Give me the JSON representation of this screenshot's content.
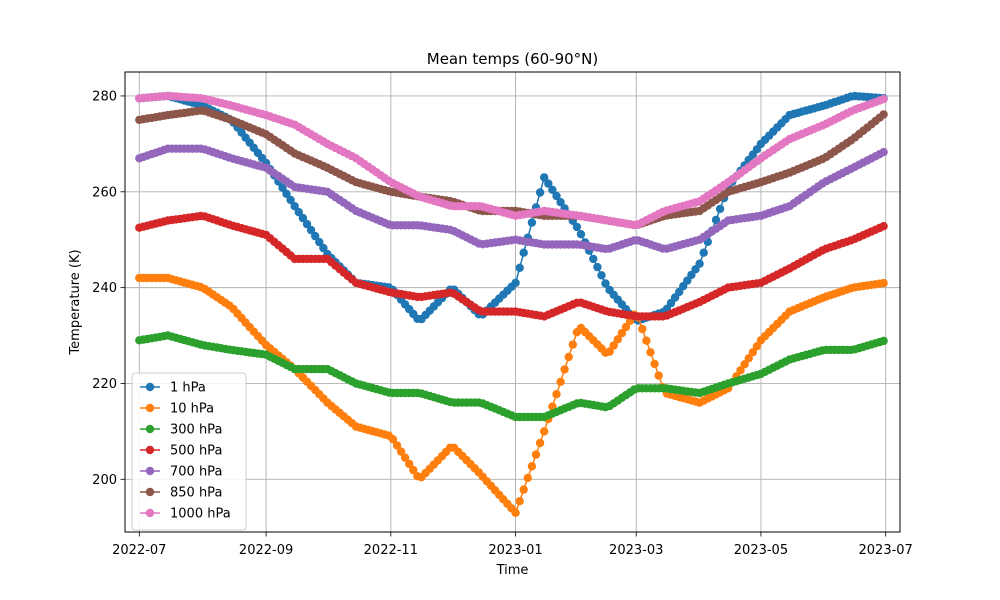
{
  "chart_data": {
    "type": "line",
    "title": "Mean temps (60-90°N)",
    "xlabel": "Time",
    "ylabel": "Temperature (K)",
    "x_axis": "date",
    "xlim": [
      "2022-06-24",
      "2023-07-08"
    ],
    "ylim": [
      189,
      285
    ],
    "x_ticks": [
      "2022-07",
      "2022-09",
      "2022-11",
      "2023-01",
      "2023-03",
      "2023-05",
      "2023-07"
    ],
    "y_ticks": [
      200,
      220,
      240,
      260,
      280
    ],
    "grid": true,
    "legend_position": "lower left",
    "x": [
      "2022-07-01",
      "2022-07-15",
      "2022-08-01",
      "2022-08-15",
      "2022-09-01",
      "2022-09-15",
      "2022-10-01",
      "2022-10-15",
      "2022-11-01",
      "2022-11-15",
      "2022-12-01",
      "2022-12-15",
      "2023-01-01",
      "2023-01-15",
      "2023-02-01",
      "2023-02-15",
      "2023-03-01",
      "2023-03-15",
      "2023-04-01",
      "2023-04-15",
      "2023-05-01",
      "2023-05-15",
      "2023-06-01",
      "2023-06-15",
      "2023-07-01"
    ],
    "series": [
      {
        "name": "1 hPa",
        "color": "#1f77b4",
        "values": [
          279.5,
          280,
          278,
          275,
          266,
          257,
          247,
          241,
          240,
          233,
          240,
          234,
          241,
          263,
          252,
          240,
          233,
          235,
          245,
          261,
          270,
          276,
          278,
          280,
          279.5
        ]
      },
      {
        "name": "10 hPa",
        "color": "#ff7f0e",
        "values": [
          242,
          242,
          240,
          236,
          228,
          223,
          216,
          211,
          209,
          200,
          207,
          201,
          193,
          210,
          232,
          226,
          235,
          218,
          216,
          219,
          229,
          235,
          238,
          240,
          241
        ]
      },
      {
        "name": "300 hPa",
        "color": "#2ca02c",
        "values": [
          229,
          230,
          228,
          227,
          226,
          223,
          223,
          220,
          218,
          218,
          216,
          216,
          213,
          213,
          216,
          215,
          219,
          219,
          218,
          220,
          222,
          225,
          227,
          227,
          229
        ]
      },
      {
        "name": "500 hPa",
        "color": "#d62728",
        "values": [
          252.5,
          254,
          255,
          253,
          251,
          246,
          246,
          241,
          239,
          238,
          239,
          235,
          235,
          234,
          237,
          235,
          234,
          234,
          237,
          240,
          241,
          244,
          248,
          250,
          253
        ]
      },
      {
        "name": "700 hPa",
        "color": "#9467bd",
        "values": [
          267,
          269,
          269,
          267,
          265,
          261,
          260,
          256,
          253,
          253,
          252,
          249,
          250,
          249,
          249,
          248,
          250,
          248,
          250,
          254,
          255,
          257,
          262,
          265,
          268.5
        ]
      },
      {
        "name": "850 hPa",
        "color": "#8c564b",
        "values": [
          275,
          276,
          277,
          275,
          272,
          268,
          265,
          262,
          260,
          259,
          258,
          256,
          256,
          255,
          255,
          254,
          253,
          255,
          256,
          260,
          262,
          264,
          267,
          271,
          276.5
        ]
      },
      {
        "name": "1000 hPa",
        "color": "#e377c2",
        "values": [
          279.5,
          280,
          279.5,
          278,
          276,
          274,
          270,
          267,
          262,
          259,
          257,
          257,
          255,
          256,
          255,
          254,
          253,
          256,
          258,
          262,
          267,
          271,
          274,
          277,
          279.5
        ]
      }
    ]
  }
}
